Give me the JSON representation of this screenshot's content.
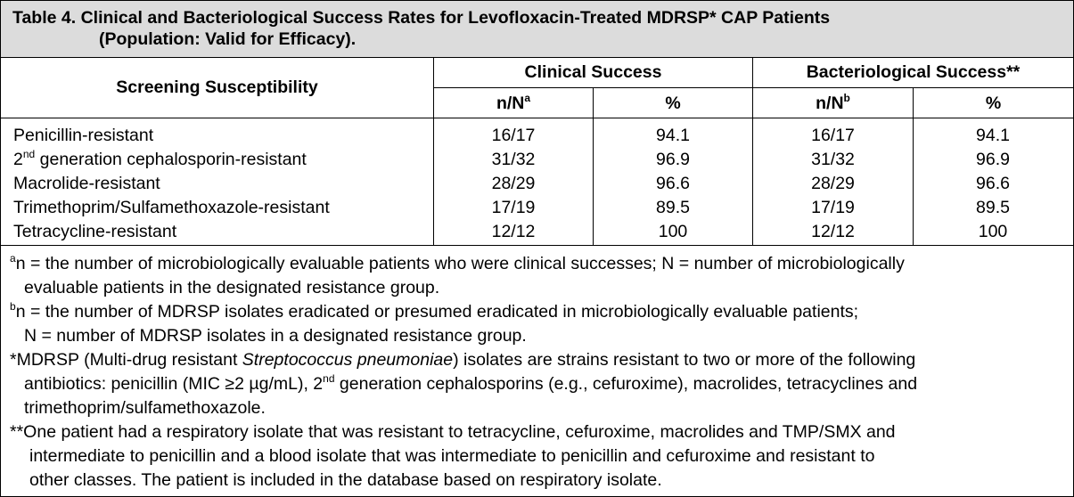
{
  "table": {
    "caption_line1": "Table 4. Clinical and Bacteriological Success Rates for Levofloxacin-Treated MDRSP* CAP Patients",
    "caption_line2": "(Population: Valid for Efficacy).",
    "header": {
      "screening": "Screening Susceptibility",
      "clinical": "Clinical Success",
      "bacteriological": "Bacteriological Success**",
      "nN_clinical": "n/N",
      "nN_clinical_sup": "a",
      "pct_clinical": "%",
      "nN_bacterio": "n/N",
      "nN_bacterio_sup": "b",
      "pct_bacterio": "%"
    },
    "rows": [
      {
        "label": "Penicillin-resistant",
        "label_sup": "",
        "label_rest": "",
        "c_nN": "16/17",
        "c_pct": "94.1",
        "b_nN": "16/17",
        "b_pct": "94.1"
      },
      {
        "label": "2",
        "label_sup": "nd",
        "label_rest": " generation cephalosporin-resistant",
        "c_nN": "31/32",
        "c_pct": "96.9",
        "b_nN": "31/32",
        "b_pct": "96.9"
      },
      {
        "label": "Macrolide-resistant",
        "label_sup": "",
        "label_rest": "",
        "c_nN": "28/29",
        "c_pct": "96.6",
        "b_nN": "28/29",
        "b_pct": "96.6"
      },
      {
        "label": "Trimethoprim/Sulfamethoxazole-resistant",
        "label_sup": "",
        "label_rest": "",
        "c_nN": "17/19",
        "c_pct": "89.5",
        "b_nN": "17/19",
        "b_pct": "89.5"
      },
      {
        "label": "Tetracycline-resistant",
        "label_sup": "",
        "label_rest": "",
        "c_nN": "12/12",
        "c_pct": "100",
        "b_nN": "12/12",
        "b_pct": "100"
      }
    ]
  },
  "footnotes": {
    "a_mark": "a",
    "a_line1": "n = the number of microbiologically evaluable patients who were clinical successes; N = number of microbiologically",
    "a_line2": "evaluable patients in the designated resistance group.",
    "b_mark": "b",
    "b_line1": "n = the number of MDRSP isolates eradicated or presumed eradicated in microbiologically evaluable patients;",
    "b_line2": "N = number of MDRSP isolates in a designated resistance group.",
    "star_line1_a": "*MDRSP (Multi-drug resistant ",
    "star_line1_italic": "Streptococcus pneumoniae",
    "star_line1_b": ") isolates are strains resistant to two or more of the following",
    "star_line2_a": "antibiotics: penicillin (MIC ≥2 µg/mL), 2",
    "star_line2_sup": "nd",
    "star_line2_b": " generation cephalosporins (e.g., cefuroxime), macrolides, tetracyclines and",
    "star_line3": "trimethoprim/sulfamethoxazole.",
    "dstar_line1": "**One patient had a respiratory isolate that was resistant to tetracycline, cefuroxime, macrolides and TMP/SMX and",
    "dstar_line2": "intermediate to penicillin and a blood isolate that was intermediate to penicillin and cefuroxime and resistant to",
    "dstar_line3": "other classes. The patient is included in the database based on respiratory isolate."
  }
}
